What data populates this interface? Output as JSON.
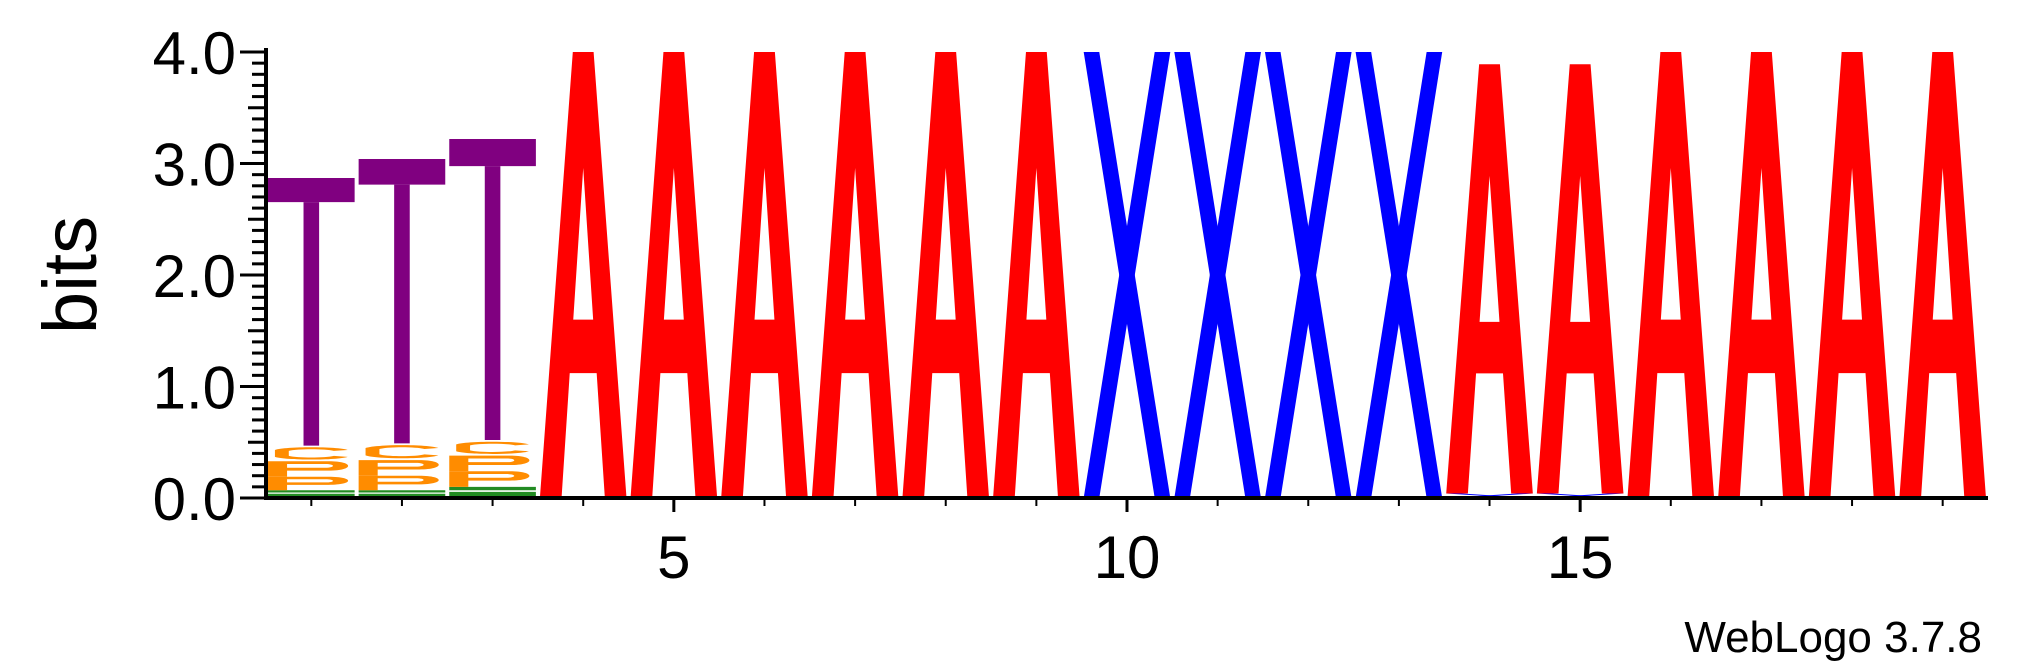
{
  "chart_data": {
    "type": "sequence_logo",
    "ylabel": "bits",
    "ylim": [
      0,
      4.0
    ],
    "yticks": [
      "0.0",
      "1.0",
      "2.0",
      "3.0",
      "4.0"
    ],
    "ytick_values": [
      0,
      1,
      2,
      3,
      4
    ],
    "minor_tick_step": 0.1,
    "xlim": [
      0.5,
      19.5
    ],
    "xticks": [
      "5",
      "10",
      "15"
    ],
    "xtick_values": [
      5,
      10,
      15
    ],
    "credit": "WebLogo 3.7.8",
    "colors": {
      "T": "#800080",
      "A": "#ff0000",
      "X": "#0000ff",
      "G": "#228b22",
      "small": "#ff8c00"
    },
    "positions": [
      {
        "pos": 1,
        "stack": [
          {
            "letter": "G",
            "bits": 0.07
          },
          {
            "letter": "P",
            "bits": 0.12
          },
          {
            "letter": "P",
            "bits": 0.14
          },
          {
            "letter": "C",
            "bits": 0.14
          },
          {
            "letter": "T",
            "bits": 2.4
          }
        ]
      },
      {
        "pos": 2,
        "stack": [
          {
            "letter": "G",
            "bits": 0.07
          },
          {
            "letter": "P",
            "bits": 0.13
          },
          {
            "letter": "P",
            "bits": 0.14
          },
          {
            "letter": "C",
            "bits": 0.15
          },
          {
            "letter": "T",
            "bits": 2.55
          }
        ]
      },
      {
        "pos": 3,
        "stack": [
          {
            "letter": "G",
            "bits": 0.1
          },
          {
            "letter": "P",
            "bits": 0.14
          },
          {
            "letter": "P",
            "bits": 0.14
          },
          {
            "letter": "C",
            "bits": 0.14
          },
          {
            "letter": "T",
            "bits": 2.7
          }
        ]
      },
      {
        "pos": 4,
        "stack": [
          {
            "letter": "A",
            "bits": 4.0
          }
        ]
      },
      {
        "pos": 5,
        "stack": [
          {
            "letter": "A",
            "bits": 4.0
          }
        ]
      },
      {
        "pos": 6,
        "stack": [
          {
            "letter": "A",
            "bits": 4.0
          }
        ]
      },
      {
        "pos": 7,
        "stack": [
          {
            "letter": "A",
            "bits": 4.0
          }
        ]
      },
      {
        "pos": 8,
        "stack": [
          {
            "letter": "A",
            "bits": 4.0
          }
        ]
      },
      {
        "pos": 9,
        "stack": [
          {
            "letter": "A",
            "bits": 4.0
          }
        ]
      },
      {
        "pos": 10,
        "stack": [
          {
            "letter": "X",
            "bits": 4.0
          }
        ]
      },
      {
        "pos": 11,
        "stack": [
          {
            "letter": "X",
            "bits": 4.0
          }
        ]
      },
      {
        "pos": 12,
        "stack": [
          {
            "letter": "X",
            "bits": 4.0
          }
        ]
      },
      {
        "pos": 13,
        "stack": [
          {
            "letter": "X",
            "bits": 4.0
          }
        ]
      },
      {
        "pos": 14,
        "stack": [
          {
            "letter": "X",
            "bits": 0.04
          },
          {
            "letter": "A",
            "bits": 3.85
          }
        ]
      },
      {
        "pos": 15,
        "stack": [
          {
            "letter": "X",
            "bits": 0.04
          },
          {
            "letter": "A",
            "bits": 3.85
          }
        ]
      },
      {
        "pos": 16,
        "stack": [
          {
            "letter": "A",
            "bits": 4.0
          }
        ]
      },
      {
        "pos": 17,
        "stack": [
          {
            "letter": "A",
            "bits": 4.0
          }
        ]
      },
      {
        "pos": 18,
        "stack": [
          {
            "letter": "A",
            "bits": 4.0
          }
        ]
      },
      {
        "pos": 19,
        "stack": [
          {
            "letter": "A",
            "bits": 4.0
          }
        ]
      }
    ]
  }
}
